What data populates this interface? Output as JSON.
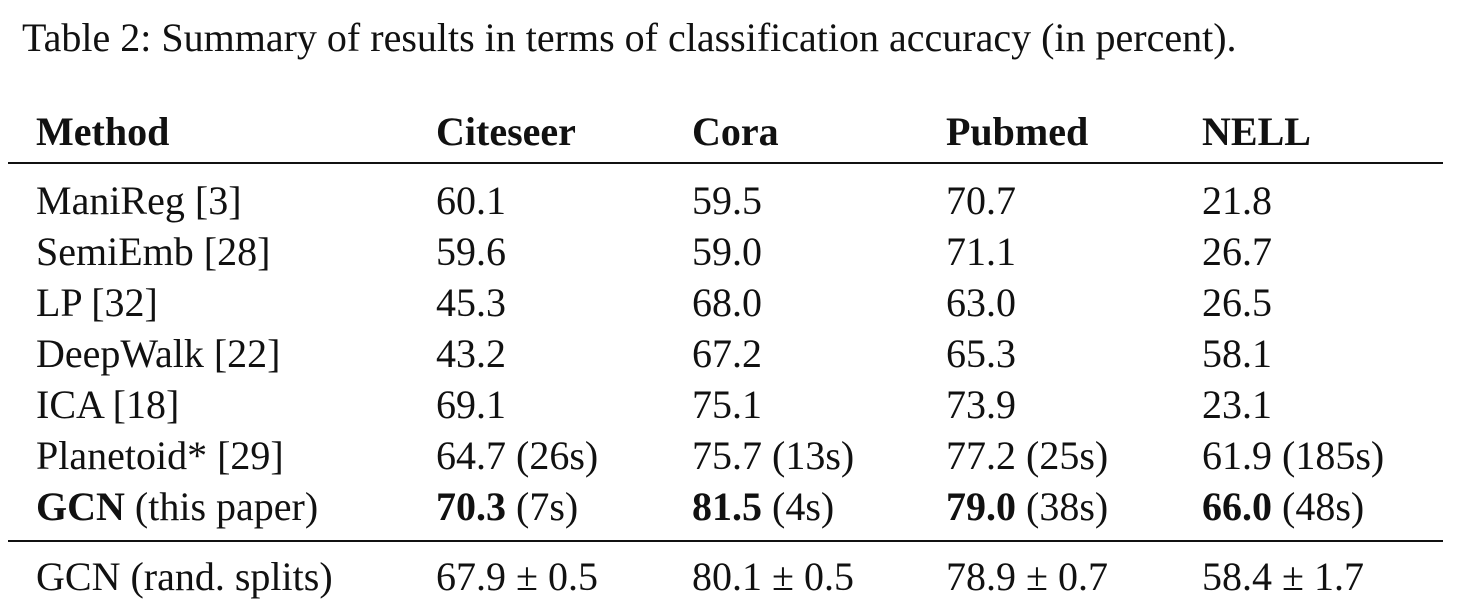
{
  "caption": "Table 2: Summary of results in terms of classification accuracy (in percent).",
  "headers": [
    "Method",
    "Citeseer",
    "Cora",
    "Pubmed",
    "NELL"
  ],
  "rows": [
    {
      "method": "ManiReg [3]",
      "citeseer": "60.1",
      "cora": "59.5",
      "pubmed": "70.7",
      "nell": "21.8"
    },
    {
      "method": "SemiEmb [28]",
      "citeseer": "59.6",
      "cora": "59.0",
      "pubmed": "71.1",
      "nell": "26.7"
    },
    {
      "method": "LP [32]",
      "citeseer": "45.3",
      "cora": "68.0",
      "pubmed": "63.0",
      "nell": "26.5"
    },
    {
      "method": "DeepWalk [22]",
      "citeseer": "43.2",
      "cora": "67.2",
      "pubmed": "65.3",
      "nell": "58.1"
    },
    {
      "method": "ICA [18]",
      "citeseer": "69.1",
      "cora": "75.1",
      "pubmed": "73.9",
      "nell": "23.1"
    },
    {
      "method": "Planetoid* [29]",
      "citeseer": "64.7 (26s)",
      "cora": "75.7 (13s)",
      "pubmed": "77.2 (25s)",
      "nell": "61.9 (185s)"
    }
  ],
  "gcn_row": {
    "method_bold": "GCN",
    "method_rest": " (this paper)",
    "citeseer_bold": "70.3",
    "citeseer_rest": " (7s)",
    "cora_bold": "81.5",
    "cora_rest": " (4s)",
    "pubmed_bold": "79.0",
    "pubmed_rest": " (38s)",
    "nell_bold": "66.0",
    "nell_rest": " (48s)"
  },
  "rand_row": {
    "method": "GCN (rand. splits)",
    "citeseer": "67.9 ± 0.5",
    "cora": "80.1 ± 0.5",
    "pubmed": "78.9 ± 0.7",
    "nell": "58.4 ± 1.7"
  }
}
